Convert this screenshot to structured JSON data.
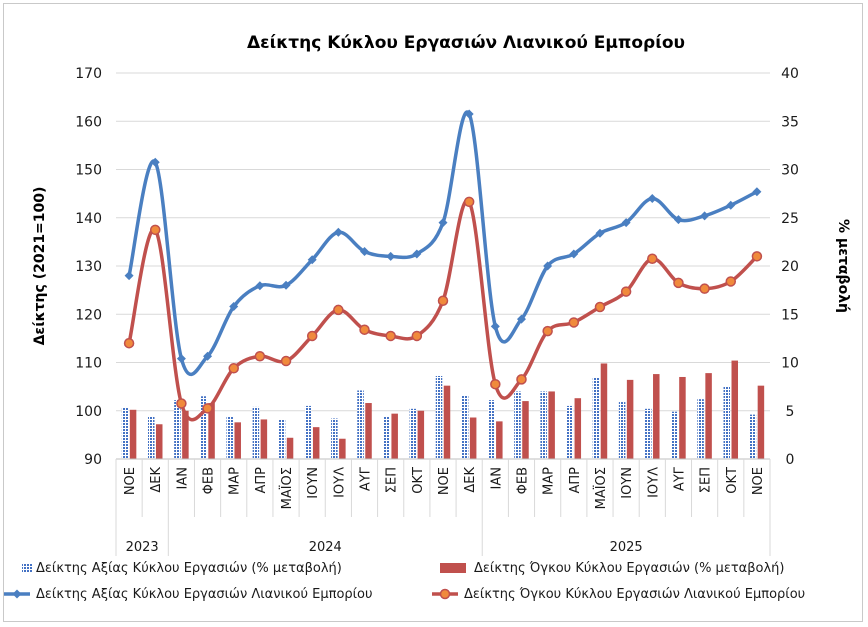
{
  "chart_data": {
    "type": "bar",
    "title": "Δείκτης Κύκλου Εργασιών Λιανικού Εμπορίου",
    "ylabel": "Δείκτης (2021=100)",
    "y2label": "% μεταβολή",
    "ylim": [
      90,
      170
    ],
    "y2lim": [
      0,
      40
    ],
    "yticks": [
      90,
      100,
      110,
      120,
      130,
      140,
      150,
      160,
      170
    ],
    "y2ticks": [
      0,
      5,
      10,
      15,
      20,
      25,
      30,
      35,
      40
    ],
    "grid": true,
    "legend_position": "bottom",
    "categories": [
      "ΝΟΕ",
      "ΔΕΚ",
      "ΙΑΝ",
      "ΦΕΒ",
      "ΜΑΡ",
      "ΑΠΡ",
      "ΜΑΪΟΣ",
      "ΙΟΥΝ",
      "ΙΟΥΛ",
      "ΑΥΓ",
      "ΣΕΠ",
      "ΟΚΤ",
      "ΝΟΕ",
      "ΔΕΚ",
      "ΙΑΝ",
      "ΦΕΒ",
      "ΜΑΡ",
      "ΑΠΡ",
      "ΜΑΪΟΣ",
      "ΙΟΥΝ",
      "ΙΟΥΛ",
      "ΑΥΓ",
      "ΣΕΠ",
      "ΟΚΤ",
      "ΝΟΕ"
    ],
    "year_groups": [
      {
        "label": "2023",
        "start": 0,
        "count": 2
      },
      {
        "label": "2024",
        "start": 2,
        "count": 12
      },
      {
        "label": "2025",
        "start": 14,
        "count": 11
      }
    ],
    "series": [
      {
        "name": "Δείκτης Αξίας Κύκλου Εργασιών (% μεταβολή)",
        "type": "bar",
        "axis": "right",
        "color": "#4472c4",
        "values": [
          5.3,
          4.4,
          6.1,
          6.5,
          4.4,
          5.4,
          4.1,
          5.5,
          4.2,
          7.1,
          4.4,
          5.2,
          8.6,
          6.6,
          6.1,
          7.0,
          7.0,
          5.5,
          8.4,
          5.9,
          5.2,
          4.9,
          6.2,
          7.5,
          4.6
        ]
      },
      {
        "name": "Δείκτης Όγκου Κύκλου Εργασιών (% μεταβολή)",
        "type": "bar",
        "axis": "right",
        "color": "#c0504d",
        "values": [
          5.1,
          3.6,
          5.0,
          5.8,
          3.8,
          4.1,
          2.2,
          3.3,
          2.1,
          5.8,
          4.7,
          5.0,
          7.6,
          4.3,
          3.9,
          6.0,
          7.0,
          6.3,
          9.9,
          8.2,
          8.8,
          8.5,
          8.9,
          10.2,
          7.6
        ]
      },
      {
        "name": "Δείκτης Αξίας Κύκλου Εργασιών Λιανικού Εμπορίου",
        "type": "line",
        "axis": "left",
        "color": "#4a7fc1",
        "marker": "diamond",
        "values": [
          128.0,
          151.5,
          110.8,
          111.3,
          121.6,
          125.9,
          126.0,
          131.3,
          137.0,
          133.0,
          132.0,
          132.5,
          139.0,
          161.5,
          117.5,
          119.0,
          130.0,
          132.5,
          136.8,
          139.0,
          144.0,
          139.6,
          140.4,
          142.6,
          145.4
        ]
      },
      {
        "name": "Δείκτης Όγκου Κύκλου Εργασιών Λιανικού Εμπορίου",
        "type": "line",
        "axis": "left",
        "color": "#c0504d",
        "marker": "circle",
        "values": [
          114.0,
          137.5,
          101.5,
          100.5,
          108.8,
          111.3,
          110.3,
          115.5,
          120.9,
          116.8,
          115.5,
          115.5,
          122.8,
          143.3,
          105.5,
          106.5,
          116.5,
          118.3,
          121.5,
          124.7,
          131.5,
          126.5,
          125.3,
          126.8,
          132.0
        ]
      }
    ]
  }
}
